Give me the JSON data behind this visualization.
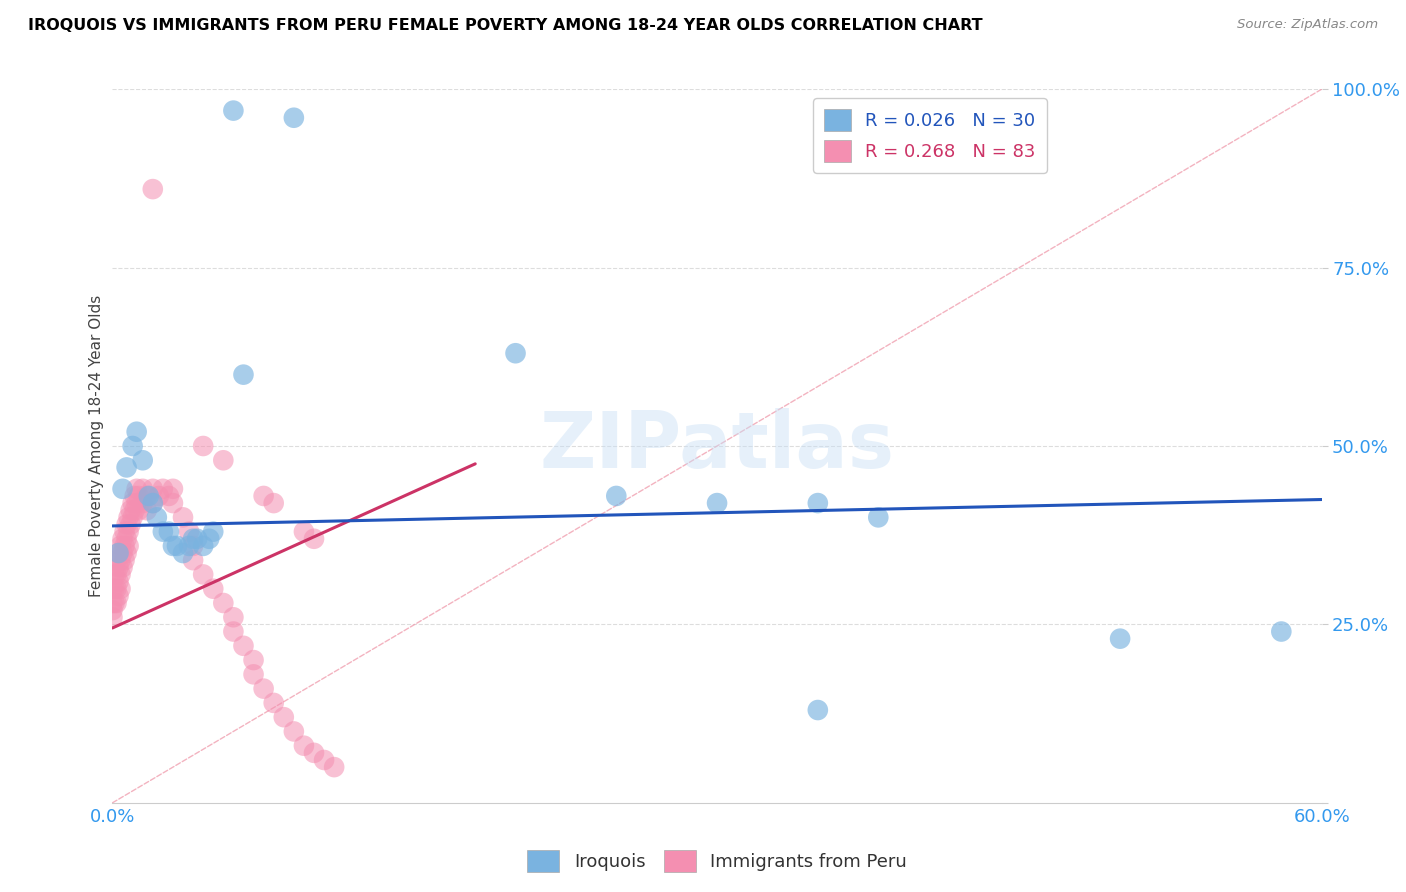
{
  "title": "IROQUOIS VS IMMIGRANTS FROM PERU FEMALE POVERTY AMONG 18-24 YEAR OLDS CORRELATION CHART",
  "source": "Source: ZipAtlas.com",
  "ylabel": "Female Poverty Among 18-24 Year Olds",
  "xlim": [
    0.0,
    0.6
  ],
  "ylim": [
    0.0,
    1.0
  ],
  "xticks": [
    0.0,
    0.1,
    0.2,
    0.3,
    0.4,
    0.5,
    0.6
  ],
  "xticklabels": [
    "0.0%",
    "",
    "",
    "",
    "",
    "",
    "60.0%"
  ],
  "yticks": [
    0.0,
    0.25,
    0.5,
    0.75,
    1.0
  ],
  "yticklabels": [
    "",
    "25.0%",
    "50.0%",
    "75.0%",
    "100.0%"
  ],
  "watermark": "ZIPatlas",
  "iroquois_scatter": [
    [
      0.003,
      0.35
    ],
    [
      0.005,
      0.44
    ],
    [
      0.007,
      0.47
    ],
    [
      0.01,
      0.5
    ],
    [
      0.012,
      0.52
    ],
    [
      0.015,
      0.48
    ],
    [
      0.018,
      0.43
    ],
    [
      0.02,
      0.42
    ],
    [
      0.022,
      0.4
    ],
    [
      0.025,
      0.38
    ],
    [
      0.028,
      0.38
    ],
    [
      0.03,
      0.36
    ],
    [
      0.032,
      0.36
    ],
    [
      0.035,
      0.35
    ],
    [
      0.038,
      0.36
    ],
    [
      0.04,
      0.37
    ],
    [
      0.042,
      0.37
    ],
    [
      0.045,
      0.36
    ],
    [
      0.048,
      0.37
    ],
    [
      0.05,
      0.38
    ],
    [
      0.06,
      0.97
    ],
    [
      0.09,
      0.96
    ],
    [
      0.065,
      0.6
    ],
    [
      0.2,
      0.63
    ],
    [
      0.25,
      0.43
    ],
    [
      0.3,
      0.42
    ],
    [
      0.35,
      0.42
    ],
    [
      0.38,
      0.4
    ],
    [
      0.35,
      0.13
    ],
    [
      0.5,
      0.23
    ],
    [
      0.58,
      0.24
    ]
  ],
  "peru_scatter": [
    [
      0.0,
      0.3
    ],
    [
      0.0,
      0.28
    ],
    [
      0.0,
      0.27
    ],
    [
      0.0,
      0.26
    ],
    [
      0.001,
      0.32
    ],
    [
      0.001,
      0.3
    ],
    [
      0.001,
      0.28
    ],
    [
      0.002,
      0.34
    ],
    [
      0.002,
      0.32
    ],
    [
      0.002,
      0.3
    ],
    [
      0.002,
      0.28
    ],
    [
      0.003,
      0.35
    ],
    [
      0.003,
      0.33
    ],
    [
      0.003,
      0.31
    ],
    [
      0.003,
      0.29
    ],
    [
      0.004,
      0.36
    ],
    [
      0.004,
      0.34
    ],
    [
      0.004,
      0.32
    ],
    [
      0.004,
      0.3
    ],
    [
      0.005,
      0.37
    ],
    [
      0.005,
      0.35
    ],
    [
      0.005,
      0.33
    ],
    [
      0.006,
      0.38
    ],
    [
      0.006,
      0.36
    ],
    [
      0.006,
      0.34
    ],
    [
      0.007,
      0.39
    ],
    [
      0.007,
      0.37
    ],
    [
      0.007,
      0.35
    ],
    [
      0.008,
      0.4
    ],
    [
      0.008,
      0.38
    ],
    [
      0.008,
      0.36
    ],
    [
      0.009,
      0.41
    ],
    [
      0.009,
      0.39
    ],
    [
      0.01,
      0.42
    ],
    [
      0.01,
      0.4
    ],
    [
      0.011,
      0.43
    ],
    [
      0.011,
      0.41
    ],
    [
      0.012,
      0.44
    ],
    [
      0.012,
      0.42
    ],
    [
      0.013,
      0.43
    ],
    [
      0.013,
      0.41
    ],
    [
      0.015,
      0.44
    ],
    [
      0.015,
      0.42
    ],
    [
      0.017,
      0.43
    ],
    [
      0.017,
      0.41
    ],
    [
      0.02,
      0.44
    ],
    [
      0.02,
      0.42
    ],
    [
      0.023,
      0.43
    ],
    [
      0.025,
      0.44
    ],
    [
      0.028,
      0.43
    ],
    [
      0.03,
      0.44
    ],
    [
      0.03,
      0.42
    ],
    [
      0.035,
      0.4
    ],
    [
      0.038,
      0.38
    ],
    [
      0.04,
      0.36
    ],
    [
      0.04,
      0.34
    ],
    [
      0.045,
      0.32
    ],
    [
      0.05,
      0.3
    ],
    [
      0.055,
      0.28
    ],
    [
      0.06,
      0.26
    ],
    [
      0.06,
      0.24
    ],
    [
      0.065,
      0.22
    ],
    [
      0.07,
      0.2
    ],
    [
      0.07,
      0.18
    ],
    [
      0.075,
      0.16
    ],
    [
      0.08,
      0.14
    ],
    [
      0.085,
      0.12
    ],
    [
      0.09,
      0.1
    ],
    [
      0.095,
      0.08
    ],
    [
      0.1,
      0.07
    ],
    [
      0.105,
      0.06
    ],
    [
      0.11,
      0.05
    ],
    [
      0.02,
      0.86
    ],
    [
      0.045,
      0.5
    ],
    [
      0.055,
      0.48
    ],
    [
      0.075,
      0.43
    ],
    [
      0.08,
      0.42
    ],
    [
      0.095,
      0.38
    ],
    [
      0.1,
      0.37
    ]
  ],
  "iroquois_line": {
    "x": [
      0.0,
      0.6
    ],
    "y": [
      0.388,
      0.425
    ]
  },
  "peru_line": {
    "x": [
      0.0,
      0.18
    ],
    "y": [
      0.245,
      0.475
    ]
  },
  "ref_line": {
    "x": [
      0.0,
      0.6
    ],
    "y": [
      0.0,
      1.0
    ]
  },
  "iroquois_color": "#7ab3e0",
  "peru_color": "#f48fb1",
  "iroquois_line_color": "#2255bb",
  "peru_line_color": "#cc3366",
  "ref_line_color": "#cccccc",
  "grid_color": "#dddddd",
  "tick_color_x": "#3399ee",
  "tick_color_y": "#3399ee",
  "background_color": "#ffffff"
}
